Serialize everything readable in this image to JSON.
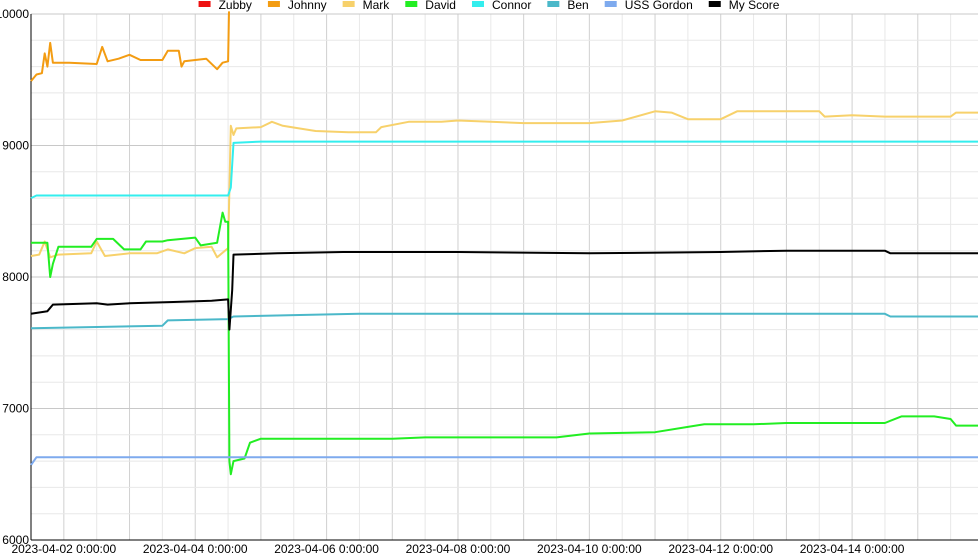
{
  "chart_data": {
    "type": "line",
    "title": "",
    "xlabel": "",
    "ylabel": "",
    "ylim": [
      6000,
      10000
    ],
    "xlim": [
      "2023-04-01 12:00",
      "2023-04-15 22:00"
    ],
    "grid": true,
    "legend_position": "top",
    "y_ticks": [
      "6000",
      "7000",
      "8000",
      "9000",
      "10000"
    ],
    "x_ticks": [
      {
        "label": "2023-04-02 0:00:00",
        "t": "2023-04-02 00:00"
      },
      {
        "label": "2023-04-04 0:00:00",
        "t": "2023-04-04 00:00"
      },
      {
        "label": "2023-04-06 0:00:00",
        "t": "2023-04-06 00:00"
      },
      {
        "label": "2023-04-08 0:00:00",
        "t": "2023-04-08 00:00"
      },
      {
        "label": "2023-04-10 0:00:00",
        "t": "2023-04-10 00:00"
      },
      {
        "label": "2023-04-12 0:00:00",
        "t": "2023-04-12 00:00"
      },
      {
        "label": "2023-04-14 0:00:00",
        "t": "2023-04-14 00:00"
      }
    ],
    "series": [
      {
        "name": "Zubby",
        "color": "#ee1111",
        "points": []
      },
      {
        "name": "Johnny",
        "color": "#f39c12",
        "points": [
          [
            "2023-04-01 12:00",
            9490
          ],
          [
            "2023-04-01 14:00",
            9540
          ],
          [
            "2023-04-01 16:00",
            9550
          ],
          [
            "2023-04-01 17:00",
            9700
          ],
          [
            "2023-04-01 18:00",
            9600
          ],
          [
            "2023-04-01 19:00",
            9780
          ],
          [
            "2023-04-01 20:00",
            9630
          ],
          [
            "2023-04-02 02:00",
            9630
          ],
          [
            "2023-04-02 12:00",
            9620
          ],
          [
            "2023-04-02 14:00",
            9750
          ],
          [
            "2023-04-02 16:00",
            9640
          ],
          [
            "2023-04-02 20:00",
            9660
          ],
          [
            "2023-04-03 00:00",
            9690
          ],
          [
            "2023-04-03 04:00",
            9650
          ],
          [
            "2023-04-03 12:00",
            9650
          ],
          [
            "2023-04-03 14:00",
            9720
          ],
          [
            "2023-04-03 18:00",
            9720
          ],
          [
            "2023-04-03 19:00",
            9600
          ],
          [
            "2023-04-03 20:00",
            9640
          ],
          [
            "2023-04-04 04:00",
            9660
          ],
          [
            "2023-04-04 08:00",
            9580
          ],
          [
            "2023-04-04 10:00",
            9630
          ],
          [
            "2023-04-04 12:00",
            9640
          ],
          [
            "2023-04-04 12:20",
            10020
          ]
        ]
      },
      {
        "name": "Mark",
        "color": "#f7d16b",
        "points": [
          [
            "2023-04-01 12:00",
            8160
          ],
          [
            "2023-04-01 15:00",
            8170
          ],
          [
            "2023-04-01 17:00",
            8270
          ],
          [
            "2023-04-01 19:00",
            8150
          ],
          [
            "2023-04-01 22:00",
            8170
          ],
          [
            "2023-04-02 10:00",
            8180
          ],
          [
            "2023-04-02 12:00",
            8270
          ],
          [
            "2023-04-02 15:00",
            8160
          ],
          [
            "2023-04-03 00:00",
            8180
          ],
          [
            "2023-04-03 10:00",
            8180
          ],
          [
            "2023-04-03 14:00",
            8210
          ],
          [
            "2023-04-03 20:00",
            8180
          ],
          [
            "2023-04-04 00:00",
            8220
          ],
          [
            "2023-04-04 06:00",
            8230
          ],
          [
            "2023-04-04 08:00",
            8150
          ],
          [
            "2023-04-04 12:00",
            8220
          ],
          [
            "2023-04-04 13:00",
            9150
          ],
          [
            "2023-04-04 14:00",
            9080
          ],
          [
            "2023-04-04 15:00",
            9130
          ],
          [
            "2023-04-05 00:00",
            9140
          ],
          [
            "2023-04-05 04:00",
            9180
          ],
          [
            "2023-04-05 08:00",
            9150
          ],
          [
            "2023-04-05 20:00",
            9110
          ],
          [
            "2023-04-06 08:00",
            9100
          ],
          [
            "2023-04-06 18:00",
            9100
          ],
          [
            "2023-04-06 20:00",
            9140
          ],
          [
            "2023-04-07 06:00",
            9180
          ],
          [
            "2023-04-07 18:00",
            9180
          ],
          [
            "2023-04-08 00:00",
            9190
          ],
          [
            "2023-04-08 12:00",
            9180
          ],
          [
            "2023-04-09 00:00",
            9170
          ],
          [
            "2023-04-10 00:00",
            9170
          ],
          [
            "2023-04-10 12:00",
            9190
          ],
          [
            "2023-04-11 00:00",
            9260
          ],
          [
            "2023-04-11 06:00",
            9250
          ],
          [
            "2023-04-11 12:00",
            9200
          ],
          [
            "2023-04-12 00:00",
            9200
          ],
          [
            "2023-04-12 06:00",
            9260
          ],
          [
            "2023-04-13 00:00",
            9260
          ],
          [
            "2023-04-13 12:00",
            9260
          ],
          [
            "2023-04-13 14:00",
            9220
          ],
          [
            "2023-04-14 00:00",
            9230
          ],
          [
            "2023-04-14 12:00",
            9220
          ],
          [
            "2023-04-15 12:00",
            9220
          ],
          [
            "2023-04-15 14:00",
            9250
          ],
          [
            "2023-04-15 22:00",
            9250
          ]
        ]
      },
      {
        "name": "David",
        "color": "#22ee22",
        "points": [
          [
            "2023-04-01 12:00",
            8260
          ],
          [
            "2023-04-01 18:00",
            8260
          ],
          [
            "2023-04-01 19:00",
            8000
          ],
          [
            "2023-04-01 20:00",
            8100
          ],
          [
            "2023-04-01 22:00",
            8230
          ],
          [
            "2023-04-02 10:00",
            8230
          ],
          [
            "2023-04-02 12:00",
            8290
          ],
          [
            "2023-04-02 18:00",
            8290
          ],
          [
            "2023-04-02 22:00",
            8210
          ],
          [
            "2023-04-03 04:00",
            8210
          ],
          [
            "2023-04-03 06:00",
            8270
          ],
          [
            "2023-04-03 12:00",
            8270
          ],
          [
            "2023-04-03 14:00",
            8280
          ],
          [
            "2023-04-04 00:00",
            8300
          ],
          [
            "2023-04-04 02:00",
            8240
          ],
          [
            "2023-04-04 08:00",
            8260
          ],
          [
            "2023-04-04 10:00",
            8490
          ],
          [
            "2023-04-04 11:00",
            8420
          ],
          [
            "2023-04-04 12:00",
            8420
          ],
          [
            "2023-04-04 12:30",
            6600
          ],
          [
            "2023-04-04 13:00",
            6500
          ],
          [
            "2023-04-04 14:00",
            6600
          ],
          [
            "2023-04-04 18:00",
            6620
          ],
          [
            "2023-04-04 20:00",
            6740
          ],
          [
            "2023-04-05 00:00",
            6770
          ],
          [
            "2023-04-07 00:00",
            6770
          ],
          [
            "2023-04-07 12:00",
            6780
          ],
          [
            "2023-04-09 12:00",
            6780
          ],
          [
            "2023-04-10 00:00",
            6810
          ],
          [
            "2023-04-11 00:00",
            6820
          ],
          [
            "2023-04-11 12:00",
            6860
          ],
          [
            "2023-04-11 18:00",
            6880
          ],
          [
            "2023-04-12 12:00",
            6880
          ],
          [
            "2023-04-13 00:00",
            6890
          ],
          [
            "2023-04-14 12:00",
            6890
          ],
          [
            "2023-04-14 18:00",
            6940
          ],
          [
            "2023-04-15 06:00",
            6940
          ],
          [
            "2023-04-15 12:00",
            6920
          ],
          [
            "2023-04-15 14:00",
            6870
          ],
          [
            "2023-04-15 22:00",
            6870
          ]
        ]
      },
      {
        "name": "Connor",
        "color": "#33eeee",
        "points": [
          [
            "2023-04-01 12:00",
            8600
          ],
          [
            "2023-04-01 14:00",
            8620
          ],
          [
            "2023-04-04 12:00",
            8620
          ],
          [
            "2023-04-04 13:00",
            8680
          ],
          [
            "2023-04-04 14:00",
            9020
          ],
          [
            "2023-04-05 00:00",
            9030
          ],
          [
            "2023-04-15 22:00",
            9030
          ]
        ]
      },
      {
        "name": "Ben",
        "color": "#4bb8c9",
        "points": [
          [
            "2023-04-01 12:00",
            7610
          ],
          [
            "2023-04-02 12:00",
            7620
          ],
          [
            "2023-04-03 12:00",
            7630
          ],
          [
            "2023-04-03 14:00",
            7670
          ],
          [
            "2023-04-04 12:00",
            7680
          ],
          [
            "2023-04-04 14:00",
            7700
          ],
          [
            "2023-04-05 12:00",
            7710
          ],
          [
            "2023-04-06 12:00",
            7720
          ],
          [
            "2023-04-14 12:00",
            7720
          ],
          [
            "2023-04-14 14:00",
            7700
          ],
          [
            "2023-04-15 22:00",
            7700
          ]
        ]
      },
      {
        "name": "USS Gordon",
        "color": "#7eaaee",
        "points": [
          [
            "2023-04-01 12:00",
            6570
          ],
          [
            "2023-04-01 14:00",
            6630
          ],
          [
            "2023-04-15 22:00",
            6630
          ]
        ]
      },
      {
        "name": "My Score",
        "color": "#000000",
        "points": [
          [
            "2023-04-01 12:00",
            7720
          ],
          [
            "2023-04-01 18:00",
            7740
          ],
          [
            "2023-04-01 20:00",
            7790
          ],
          [
            "2023-04-02 12:00",
            7800
          ],
          [
            "2023-04-02 16:00",
            7790
          ],
          [
            "2023-04-03 00:00",
            7800
          ],
          [
            "2023-04-03 16:00",
            7810
          ],
          [
            "2023-04-04 06:00",
            7820
          ],
          [
            "2023-04-04 12:00",
            7830
          ],
          [
            "2023-04-04 12:30",
            7600
          ],
          [
            "2023-04-04 13:30",
            7900
          ],
          [
            "2023-04-04 14:00",
            8170
          ],
          [
            "2023-04-05 06:00",
            8180
          ],
          [
            "2023-04-06 06:00",
            8190
          ],
          [
            "2023-04-08 00:00",
            8190
          ],
          [
            "2023-04-10 00:00",
            8180
          ],
          [
            "2023-04-12 00:00",
            8190
          ],
          [
            "2023-04-13 00:00",
            8200
          ],
          [
            "2023-04-14 12:00",
            8200
          ],
          [
            "2023-04-14 14:00",
            8180
          ],
          [
            "2023-04-15 22:00",
            8180
          ]
        ]
      }
    ]
  }
}
